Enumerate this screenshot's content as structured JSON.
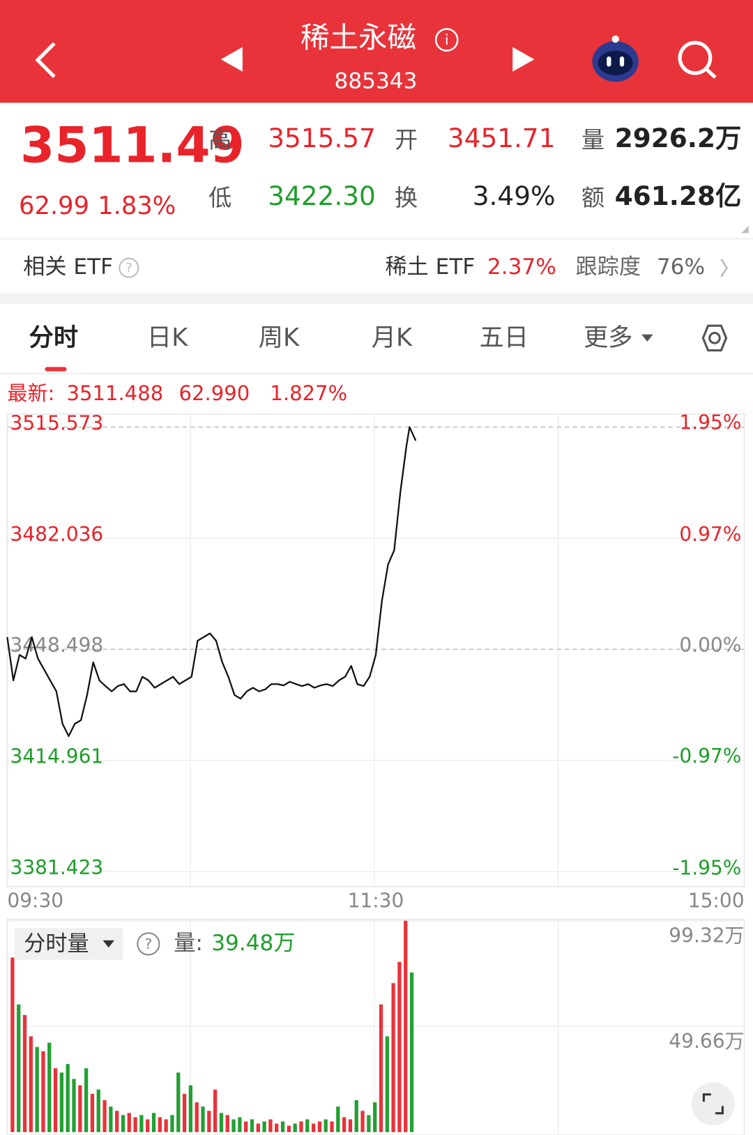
{
  "header": {
    "title": "稀土永磁",
    "code": "885343"
  },
  "quote": {
    "price": "3511.49",
    "change": "62.99",
    "change_pct": "1.83%",
    "high_label": "高",
    "high": "3515.57",
    "open_label": "开",
    "open": "3451.71",
    "volume_label": "量",
    "volume": "2926.2万",
    "low_label": "低",
    "low": "3422.30",
    "turnover_label": "换",
    "turnover": "3.49%",
    "amount_label": "额",
    "amount": "461.28亿"
  },
  "etf": {
    "label": "相关 ETF",
    "name": "稀土 ETF",
    "pct": "2.37%",
    "track_label": "跟踪度",
    "track": "76%"
  },
  "tabs": [
    "分时",
    "日K",
    "周K",
    "月K",
    "五日",
    "更多"
  ],
  "latest": {
    "label": "最新:",
    "price": "3511.488",
    "change": "62.990",
    "pct": "1.827%"
  },
  "volume_panel": {
    "button": "分时量",
    "label": "量:",
    "value": "39.48万"
  },
  "chart_data": [
    {
      "type": "line",
      "color": "#111111",
      "x": [
        0,
        2,
        4,
        6,
        8,
        10,
        12,
        14,
        16,
        18,
        20,
        22,
        24,
        26,
        28,
        30,
        32,
        34,
        36,
        38,
        40,
        42,
        44,
        46,
        48,
        50,
        52,
        54,
        56,
        58,
        60,
        62,
        64,
        66,
        68,
        70,
        72,
        74,
        76,
        78,
        80,
        82,
        84,
        86,
        88,
        90,
        92,
        94,
        96,
        98,
        100,
        102,
        104,
        106,
        108,
        110,
        112,
        114,
        116,
        118,
        120,
        122,
        124,
        126,
        128,
        130,
        131,
        133
      ],
      "values": [
        3452.2,
        3439.1,
        3446.8,
        3445.7,
        3452.2,
        3445.7,
        3442.4,
        3439.1,
        3435.8,
        3426.0,
        3422.3,
        3426.0,
        3427.1,
        3434.7,
        3444.6,
        3439.1,
        3437.4,
        3435.8,
        3437.4,
        3438.0,
        3435.8,
        3435.8,
        3440.2,
        3439.1,
        3436.9,
        3438.0,
        3439.1,
        3440.2,
        3438.0,
        3439.1,
        3440.2,
        3451.1,
        3452.2,
        3453.3,
        3451.1,
        3444.6,
        3440.2,
        3434.7,
        3433.6,
        3435.8,
        3436.9,
        3435.8,
        3436.4,
        3438.0,
        3438.0,
        3437.6,
        3438.7,
        3438.0,
        3437.4,
        3438.0,
        3436.9,
        3437.6,
        3438.0,
        3437.4,
        3439.1,
        3440.2,
        3443.5,
        3438.0,
        3437.4,
        3440.2,
        3446.8,
        3463.1,
        3474.1,
        3478.4,
        3495.9,
        3510.0,
        3515.57,
        3511.49
      ],
      "xlim": [
        0,
        240
      ],
      "xticks": [
        {
          "value": 0,
          "label": "09:30"
        },
        {
          "value": 120,
          "label": "11:30"
        },
        {
          "value": 240,
          "label": "15:00"
        }
      ],
      "ylim": [
        3376.84,
        3519.51
      ],
      "yticks": [
        3515.573,
        3482.036,
        3448.498,
        3414.961,
        3381.423
      ],
      "y2lim": [
        -2.078,
        2.059
      ],
      "y2ticks": [
        {
          "value": 1.95,
          "label": "1.95%"
        },
        {
          "value": 0.97,
          "label": "0.97%"
        },
        {
          "value": 0,
          "label": "0.00%"
        },
        {
          "value": -0.97,
          "label": "-0.97%"
        },
        {
          "value": -1.95,
          "label": "-1.95%"
        }
      ]
    },
    {
      "type": "bar",
      "values": [
        82,
        60,
        55,
        45,
        40,
        38,
        42,
        30,
        28,
        32,
        25,
        22,
        30,
        18,
        20,
        15,
        12,
        10,
        8,
        9,
        7,
        8,
        6,
        9,
        7,
        6,
        8,
        28,
        18,
        22,
        14,
        12,
        10,
        20,
        9,
        8,
        6,
        7,
        5,
        6,
        4,
        5,
        6,
        4,
        5,
        3,
        4,
        5,
        6,
        4,
        5,
        6,
        5,
        12,
        7,
        6,
        15,
        10,
        8,
        14,
        60,
        45,
        70,
        80,
        99.32,
        75
      ],
      "colors": [
        "#e8333a",
        "#23a033",
        "#e8333a",
        "#e8333a",
        "#23a033",
        "#e8333a",
        "#23a033",
        "#e8333a",
        "#23a033",
        "#23a033",
        "#23a033",
        "#e8333a",
        "#23a033",
        "#e8333a",
        "#23a033",
        "#e8333a",
        "#23a033",
        "#e8333a",
        "#23a033",
        "#e8333a",
        "#e8333a",
        "#23a033",
        "#e8333a",
        "#23a033",
        "#e8333a",
        "#e8333a",
        "#23a033",
        "#23a033",
        "#e8333a",
        "#23a033",
        "#e8333a",
        "#23a033",
        "#e8333a",
        "#e8333a",
        "#23a033",
        "#e8333a",
        "#23a033",
        "#23a033",
        "#e8333a",
        "#23a033",
        "#e8333a",
        "#23a033",
        "#e8333a",
        "#e8333a",
        "#23a033",
        "#e8333a",
        "#23a033",
        "#e8333a",
        "#23a033",
        "#e8333a",
        "#e8333a",
        "#23a033",
        "#e8333a",
        "#23a033",
        "#e8333a",
        "#e8333a",
        "#23a033",
        "#e8333a",
        "#23a033",
        "#23a033",
        "#e8333a",
        "#23a033",
        "#e8333a",
        "#e8333a",
        "#e8333a",
        "#23a033"
      ],
      "ylim": [
        0,
        99.32
      ],
      "yticks": [
        {
          "value": 99.32,
          "label": "99.32万"
        },
        {
          "value": 49.66,
          "label": "49.66万"
        }
      ]
    }
  ]
}
